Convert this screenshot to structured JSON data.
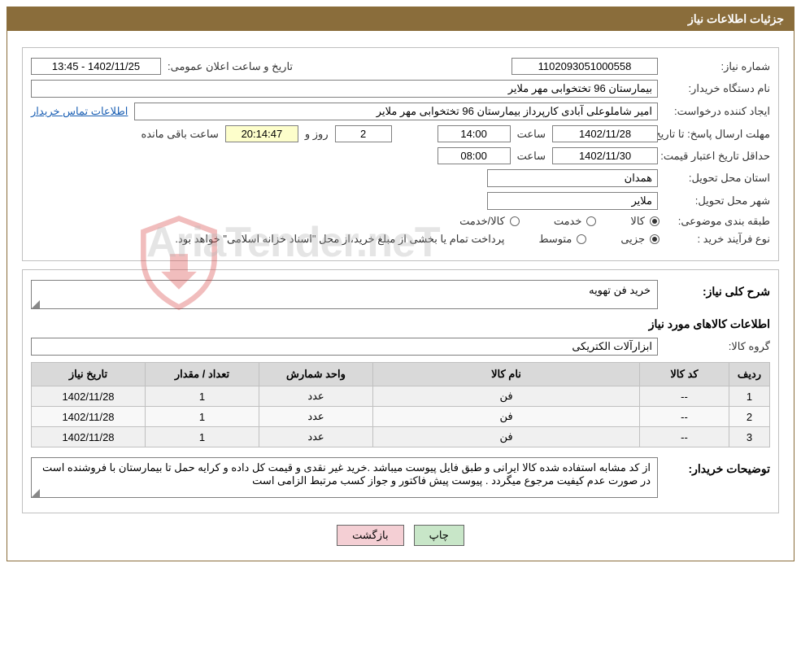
{
  "header": {
    "title": "جزئیات اطلاعات نیاز"
  },
  "form": {
    "need_number_label": "شماره نیاز:",
    "need_number": "1102093051000558",
    "announce_label": "تاریخ و ساعت اعلان عمومی:",
    "announce_value": "1402/11/25 - 13:45",
    "buyer_org_label": "نام دستگاه خریدار:",
    "buyer_org": "بیمارستان 96 تختخوابی مهر ملایر",
    "requester_label": "ایجاد کننده درخواست:",
    "requester": "امیر شاملوعلی آبادی کارپرداز بیمارستان 96 تختخوابی مهر ملایر",
    "contact_link": "اطلاعات تماس خریدار",
    "deadline_label": "مهلت ارسال پاسخ: تا تاریخ:",
    "deadline_date": "1402/11/28",
    "time_label": "ساعت",
    "deadline_time": "14:00",
    "days_remaining": "2",
    "days_and_label": "روز و",
    "countdown": "20:14:47",
    "remaining_label": "ساعت باقی مانده",
    "validity_label": "حداقل تاریخ اعتبار قیمت: تا تاریخ:",
    "validity_date": "1402/11/30",
    "validity_time": "08:00",
    "province_label": "استان محل تحویل:",
    "province": "همدان",
    "city_label": "شهر محل تحویل:",
    "city": "ملایر",
    "category_label": "طبقه بندی موضوعی:",
    "cat_goods": "کالا",
    "cat_service": "خدمت",
    "cat_goods_service": "کالا/خدمت",
    "purchase_type_label": "نوع فرآیند خرید :",
    "pt_partial": "جزیی",
    "pt_medium": "متوسط",
    "purchase_note": "پرداخت تمام یا بخشی از مبلغ خرید،از محل \"اسناد خزانه اسلامی\" خواهد بود."
  },
  "desc": {
    "title": "شرح کلی نیاز:",
    "text": "خرید فن تهویه"
  },
  "items_section_title": "اطلاعات کالاهای مورد نیاز",
  "group": {
    "label": "گروه کالا:",
    "value": "ابزارآلات الکتریکی"
  },
  "table": {
    "headers": [
      "ردیف",
      "کد کالا",
      "نام کالا",
      "واحد شمارش",
      "تعداد / مقدار",
      "تاریخ نیاز"
    ],
    "col_widths": [
      "50px",
      "110px",
      "auto",
      "140px",
      "140px",
      "140px"
    ],
    "rows": [
      [
        "1",
        "--",
        "فن",
        "عدد",
        "1",
        "1402/11/28"
      ],
      [
        "2",
        "--",
        "فن",
        "عدد",
        "1",
        "1402/11/28"
      ],
      [
        "3",
        "--",
        "فن",
        "عدد",
        "1",
        "1402/11/28"
      ]
    ]
  },
  "buyer_notes": {
    "label": "توضیحات خریدار:",
    "text": "از کد مشابه استفاده شده کالا ایرانی و طبق فایل پیوست میباشد .خرید غیر نقدی و قیمت کل داده و کرایه حمل تا بیمارستان با فروشنده است در صورت عدم کیفیت مرجوع میگردد . پیوست پیش فاکتور و جواز کسب مرتبط الزامی است"
  },
  "buttons": {
    "print": "چاپ",
    "back": "بازگشت"
  },
  "watermark": "AriaTender.neT",
  "colors": {
    "header_bg": "#8a6d3b",
    "border": "#808080",
    "table_header": "#d9d9d9",
    "table_row": "#f0f0f0",
    "link": "#1a5fb4",
    "btn_print": "#c8e6c8",
    "btn_back": "#f4cfd4",
    "countdown_bg": "#fdfecb",
    "shield_stroke": "#d84545"
  }
}
